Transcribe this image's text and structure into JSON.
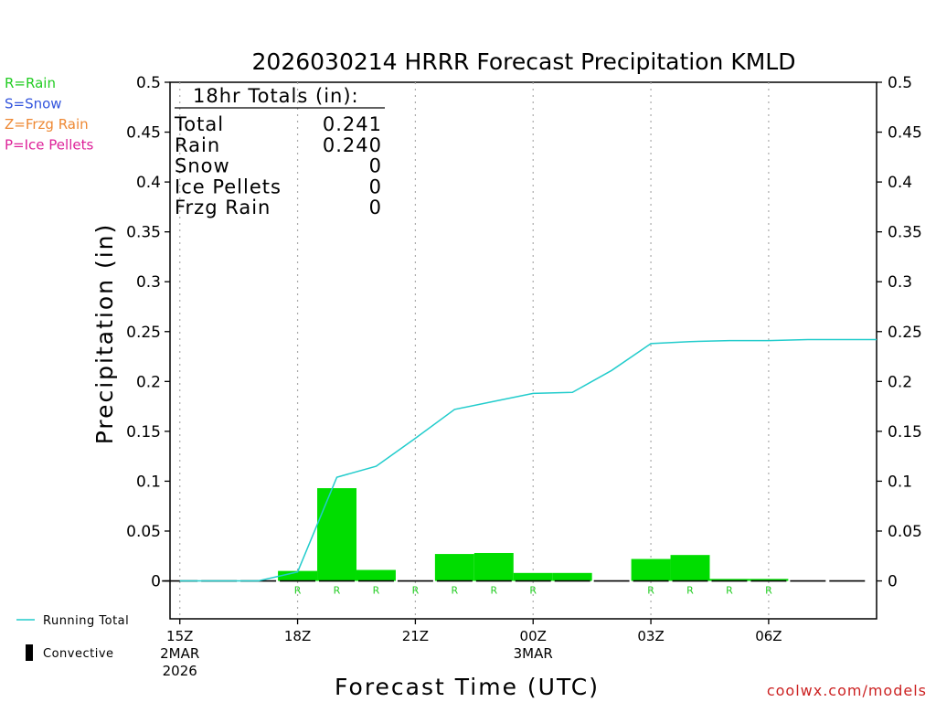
{
  "title": "2026030214 HRRR Forecast Precipitation KMLD",
  "watermark": "coolwx.com/models",
  "legend_left": [
    {
      "text": "R=Rain",
      "color": "#22cc22"
    },
    {
      "text": "S=Snow",
      "color": "#3355dd"
    },
    {
      "text": "Z=Frzg Rain",
      "color": "#ee8833"
    },
    {
      "text": "P=Ice Pellets",
      "color": "#dd2299"
    }
  ],
  "legend_bottom": {
    "running_total": "Running Total",
    "convective": "Convective"
  },
  "totals": {
    "header": "18hr Totals (in):",
    "rows": [
      {
        "label": "Total",
        "value": "0.241"
      },
      {
        "label": "Rain",
        "value": "0.240"
      },
      {
        "label": "Snow",
        "value": "0"
      },
      {
        "label": "Ice Pellets",
        "value": "0"
      },
      {
        "label": "Frzg Rain",
        "value": "0"
      }
    ]
  },
  "colors": {
    "bar": "#00dd00",
    "running_total": "#22cccc",
    "precip_letter": "#22cc22",
    "axis": "#000000",
    "grid": "#aaaaaa"
  },
  "chart_data": {
    "type": "bar",
    "xlabel": "Forecast Time (UTC)",
    "ylabel": "Precipitation (in)",
    "ylim": [
      -0.038,
      0.5
    ],
    "yticks": [
      0,
      0.05,
      0.1,
      0.15,
      0.2,
      0.25,
      0.3,
      0.35,
      0.4,
      0.45,
      0.5
    ],
    "ytick_labels": [
      "0",
      "0.05",
      "0.1",
      "0.15",
      "0.2",
      "0.25",
      "0.3",
      "0.35",
      "0.4",
      "0.45",
      "0.5"
    ],
    "xlim_hours": [
      14.75,
      32.75
    ],
    "xticks": [
      {
        "hour": 15,
        "label": "15Z",
        "sub1": "2MAR",
        "sub2": "2026"
      },
      {
        "hour": 18,
        "label": "18Z",
        "sub1": "",
        "sub2": ""
      },
      {
        "hour": 21,
        "label": "21Z",
        "sub1": "",
        "sub2": ""
      },
      {
        "hour": 24,
        "label": "00Z",
        "sub1": "3MAR",
        "sub2": ""
      },
      {
        "hour": 27,
        "label": "03Z",
        "sub1": "",
        "sub2": ""
      },
      {
        "hour": 30,
        "label": "06Z",
        "sub1": "",
        "sub2": ""
      }
    ],
    "hours": [
      15,
      16,
      17,
      18,
      19,
      20,
      21,
      22,
      23,
      24,
      25,
      26,
      27,
      28,
      29,
      30,
      31,
      32
    ],
    "hourly_precip": [
      0,
      0,
      0,
      0.01,
      0.093,
      0.011,
      0,
      0.027,
      0.028,
      0.008,
      0.008,
      0,
      0.022,
      0.026,
      0.002,
      0.002,
      0,
      0
    ],
    "precip_type": [
      "",
      "",
      "",
      "R",
      "R",
      "R",
      "R",
      "R",
      "R",
      "R",
      "",
      "",
      "R",
      "R",
      "R",
      "R",
      "",
      ""
    ],
    "running_total": {
      "series_name": "Running Total",
      "hours": [
        15,
        16,
        17,
        18,
        19,
        20,
        21,
        22,
        23,
        24,
        25,
        26,
        27,
        28,
        29,
        30,
        31,
        32,
        32.75
      ],
      "values": [
        0,
        0,
        0,
        0.009,
        0.104,
        0.115,
        0.143,
        0.172,
        0.18,
        0.188,
        0.189,
        0.211,
        0.238,
        0.24,
        0.241,
        0.241,
        0.242,
        0.242,
        0.242
      ]
    }
  }
}
